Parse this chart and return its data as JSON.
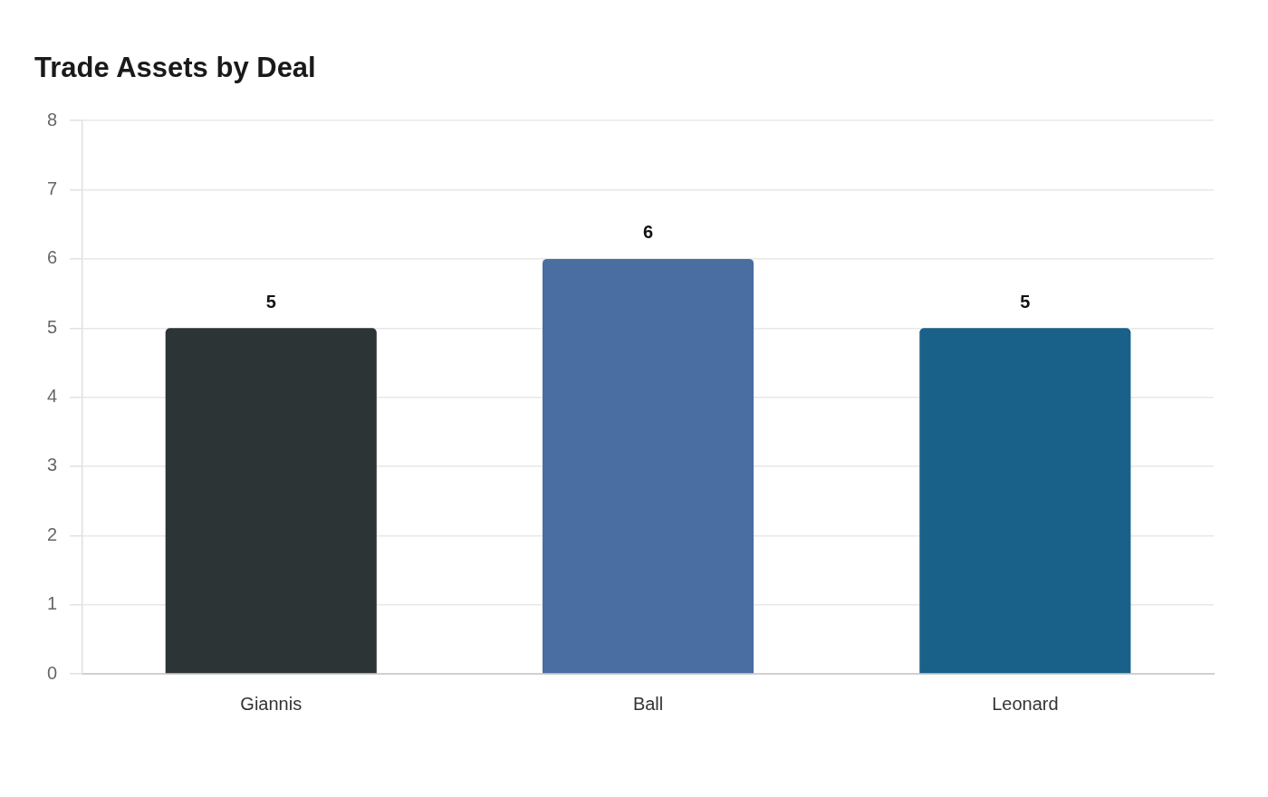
{
  "chart_data": {
    "type": "bar",
    "title": "Trade Assets by Deal",
    "categories": [
      "Giannis",
      "Ball",
      "Leonard"
    ],
    "values": [
      5,
      6,
      5
    ],
    "colors": [
      "#2c3436",
      "#4a6da2",
      "#196188"
    ],
    "ylim": [
      0,
      8
    ],
    "yticks": [
      0,
      1,
      2,
      3,
      4,
      5,
      6,
      7,
      8
    ],
    "grid": "y",
    "data_labels": true
  }
}
